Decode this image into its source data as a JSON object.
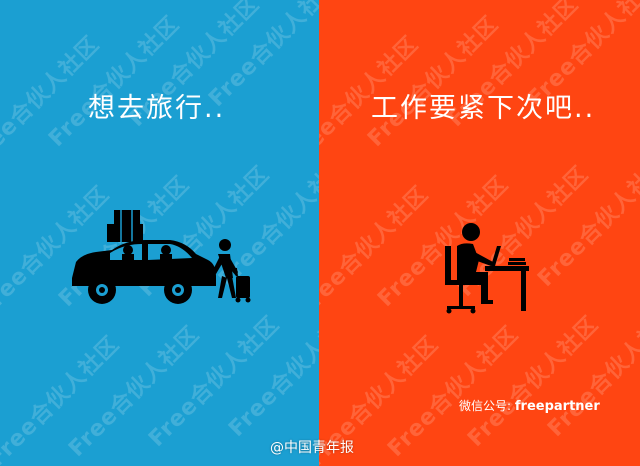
{
  "left_panel": {
    "headline": "想去旅行..",
    "background": "#1b9fd2",
    "illustration": "car-trip-icon"
  },
  "right_panel": {
    "headline": "工作要紧下次吧..",
    "background": "#ff4512",
    "illustration": "desk-worker-icon"
  },
  "watermark": {
    "text": "Free合伙人社区"
  },
  "credit": {
    "label": "微信公号:",
    "handle": "freepartner"
  },
  "source_tag": "@中国青年报"
}
